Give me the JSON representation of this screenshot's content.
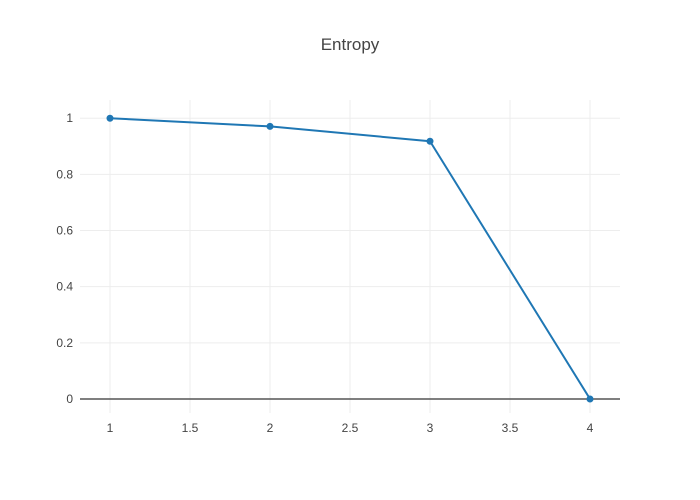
{
  "chart_data": {
    "type": "line",
    "title": "Entropy",
    "x": [
      1,
      2,
      3,
      4
    ],
    "y": [
      1,
      0.971,
      0.918,
      0
    ],
    "xlabel": "",
    "ylabel": "",
    "xlim": [
      0.8125,
      4.1875
    ],
    "ylim": [
      -0.05,
      1.065
    ],
    "x_ticks": [
      {
        "v": 1,
        "label": "1"
      },
      {
        "v": 1.5,
        "label": "1.5"
      },
      {
        "v": 2,
        "label": "2"
      },
      {
        "v": 2.5,
        "label": "2.5"
      },
      {
        "v": 3,
        "label": "3"
      },
      {
        "v": 3.5,
        "label": "3.5"
      },
      {
        "v": 4,
        "label": "4"
      }
    ],
    "y_ticks": [
      {
        "v": 0,
        "label": "0"
      },
      {
        "v": 0.2,
        "label": "0.2"
      },
      {
        "v": 0.4,
        "label": "0.4"
      },
      {
        "v": 0.6,
        "label": "0.6"
      },
      {
        "v": 0.8,
        "label": "0.8"
      },
      {
        "v": 1,
        "label": "1"
      }
    ],
    "grid": true,
    "legend": "none",
    "colors": {
      "line": "#1f77b4",
      "grid": "#ededed",
      "zeroline": "#555555",
      "text": "#444444",
      "background": "#ffffff"
    }
  }
}
